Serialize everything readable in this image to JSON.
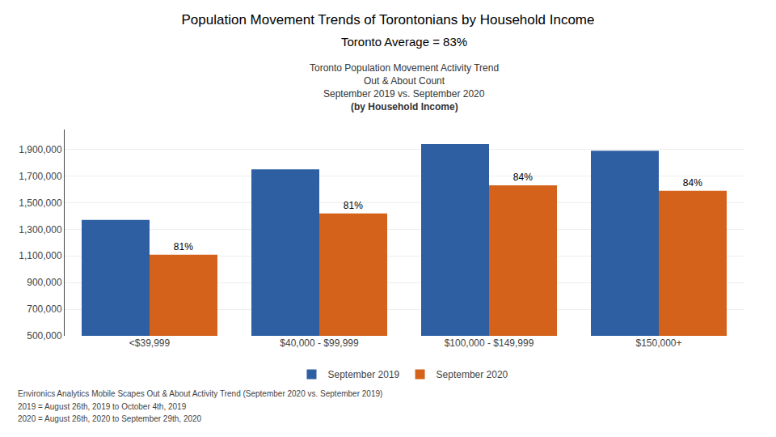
{
  "chart_data": {
    "type": "bar",
    "title": "Population Movement Trends of Torontonians by Household Income",
    "subtitle": "Toronto Average = 83%",
    "chart_title": [
      "Toronto Population Movement Activity Trend",
      "Out & About Count",
      "September 2019 vs. September 2020",
      "(by Household Income)"
    ],
    "categories": [
      "<$39,999",
      "$40,000 - $99,999",
      "$100,000 - $149,999",
      "$150,000+"
    ],
    "series": [
      {
        "name": "September 2019",
        "color": "#2E5FA3",
        "values": [
          1370000,
          1750000,
          1940000,
          1890000
        ]
      },
      {
        "name": "September 2020",
        "color": "#D4621A",
        "values": [
          1110000,
          1420000,
          1630000,
          1590000
        ]
      }
    ],
    "annotations": [
      {
        "series": "September 2020",
        "category": "<$39,999",
        "text": "81%"
      },
      {
        "series": "September 2020",
        "category": "$40,000 - $99,999",
        "text": "81%"
      },
      {
        "series": "September 2020",
        "category": "$100,000 - $149,999",
        "text": "84%"
      },
      {
        "series": "September 2020",
        "category": "$150,000+",
        "text": "84%"
      }
    ],
    "ylim": [
      500000,
      2050000
    ],
    "yticks": [
      {
        "value": 500000,
        "label": "500,000"
      },
      {
        "value": 700000,
        "label": "700,000"
      },
      {
        "value": 900000,
        "label": "900,000"
      },
      {
        "value": 1100000,
        "label": "1,100,000"
      },
      {
        "value": 1300000,
        "label": "1,300,000"
      },
      {
        "value": 1500000,
        "label": "1,500,000"
      },
      {
        "value": 1700000,
        "label": "1,700,000"
      },
      {
        "value": 1900000,
        "label": "1,900,000"
      }
    ],
    "grid": true,
    "legend": "bottom",
    "footnotes": [
      "Environics Analytics Mobile Scapes Out & About Activity Trend (September 2020 vs. September 2019)",
      "2019 = August 26th, 2019 to October 4th, 2019",
      "2020 = August 26th, 2020 to September 29th, 2020"
    ]
  }
}
